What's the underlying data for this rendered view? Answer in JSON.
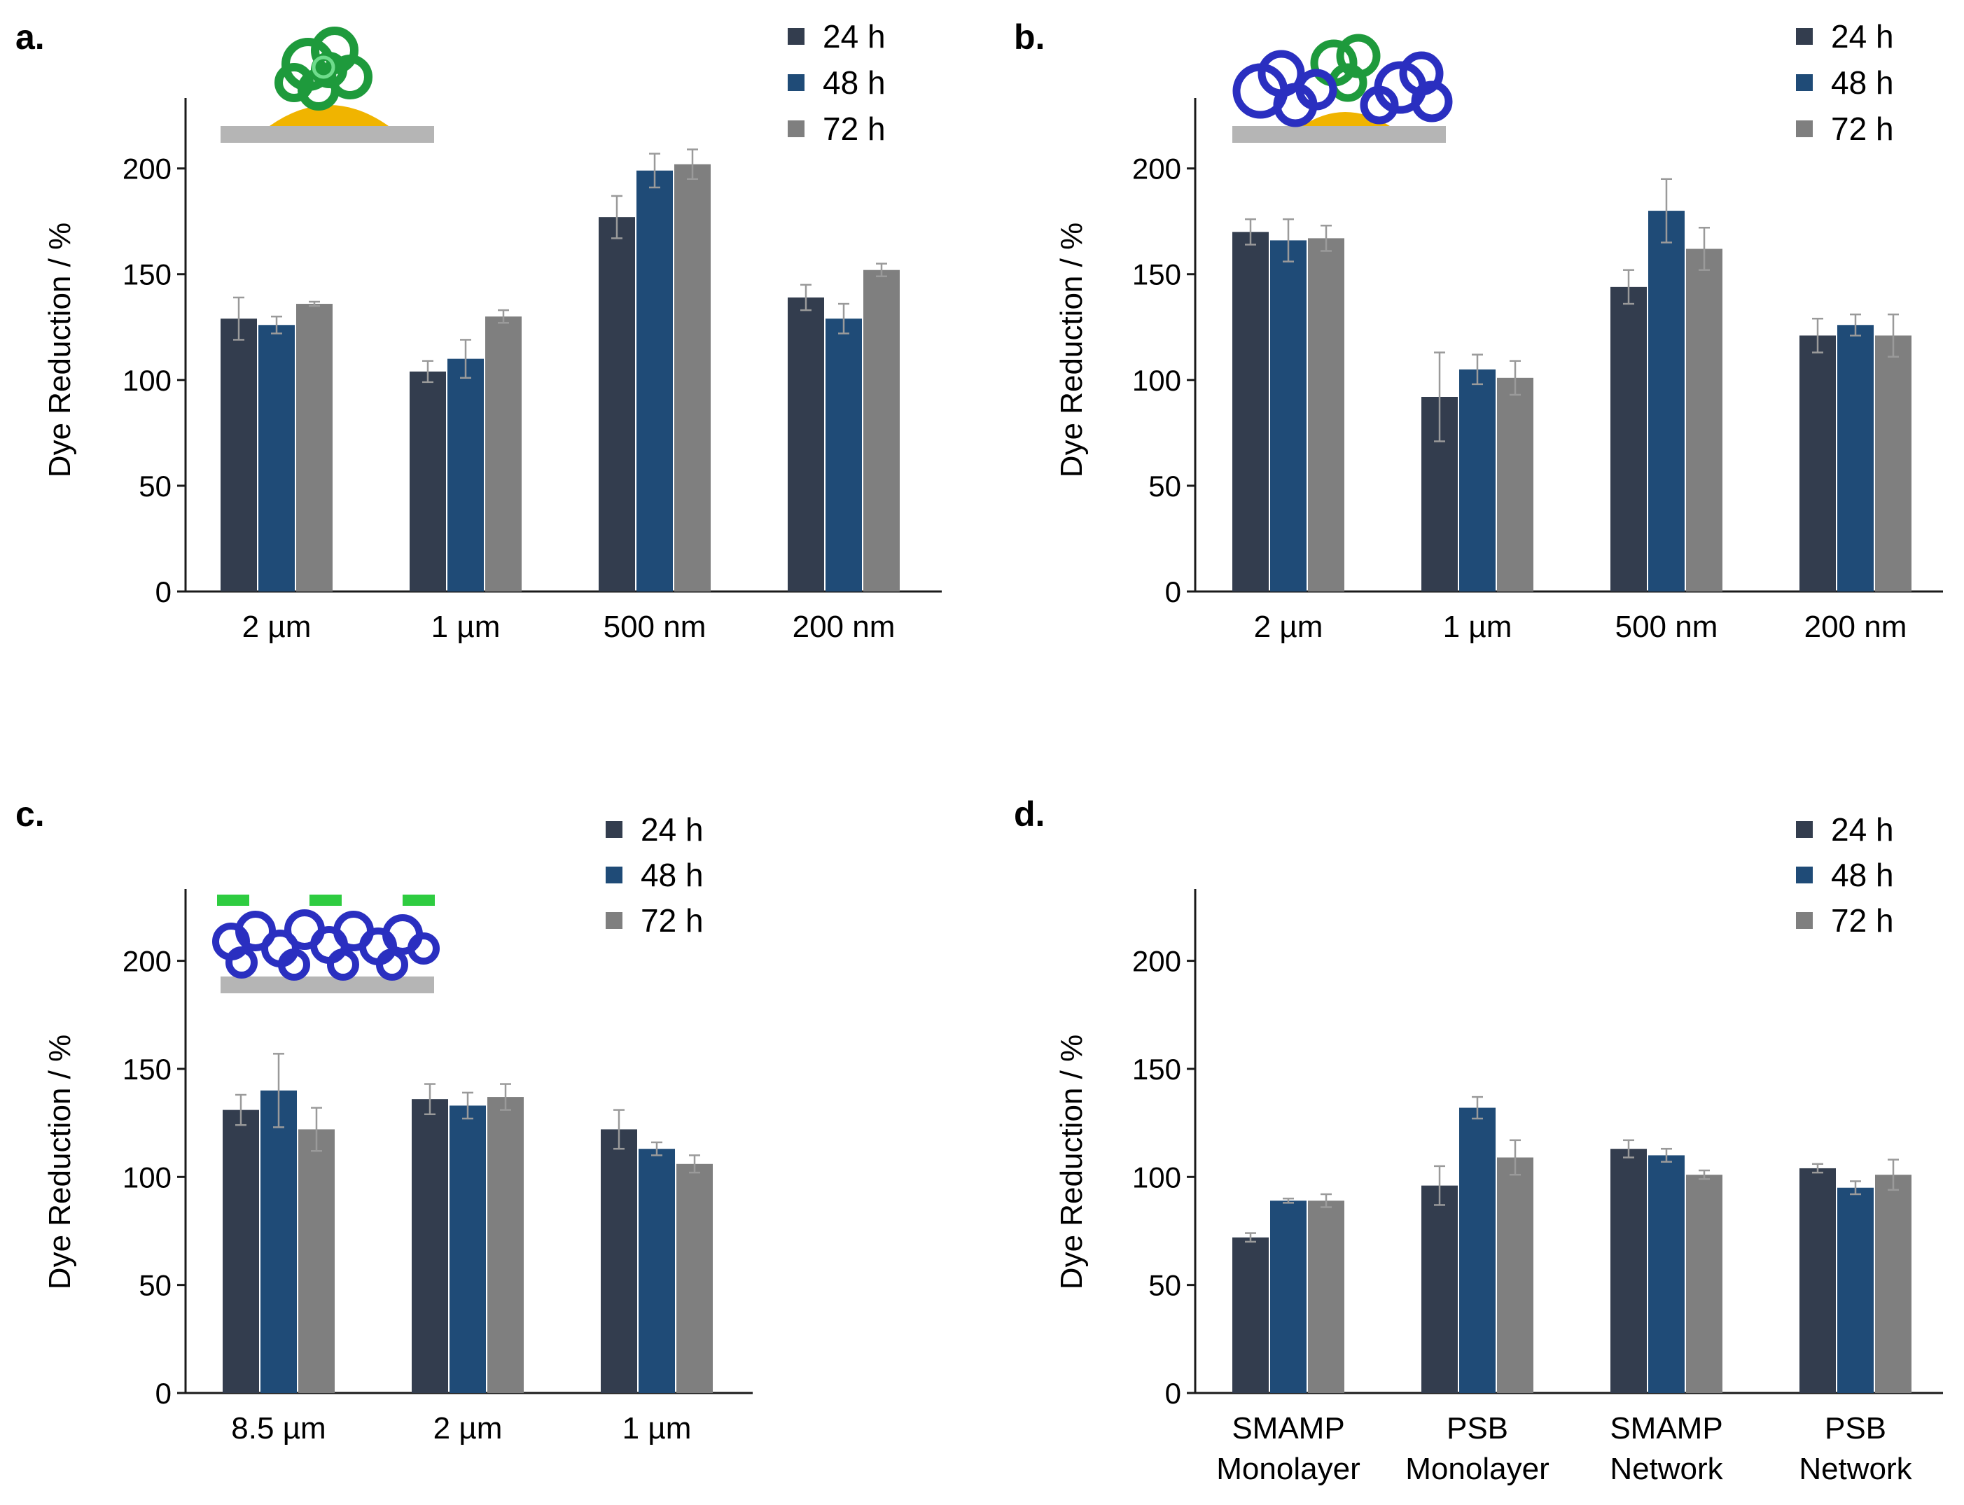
{
  "colors": {
    "24h": "#333d4e",
    "48h": "#1f4b77",
    "72h": "#7f7f7f"
  },
  "chart_data": [
    {
      "panel": "a.",
      "type": "bar",
      "ylabel": "Dye Reduction / %",
      "ylim": [
        0,
        230
      ],
      "yticks": [
        0,
        50,
        100,
        150,
        200
      ],
      "categories": [
        [
          "2 µm"
        ],
        [
          "1 µm"
        ],
        [
          "500 nm"
        ],
        [
          "200 nm"
        ]
      ],
      "series": [
        {
          "name": "24 h",
          "values": [
            129,
            104,
            177,
            139
          ],
          "errors": [
            10,
            5,
            10,
            6
          ]
        },
        {
          "name": "48 h",
          "values": [
            126,
            110,
            199,
            129
          ],
          "errors": [
            4,
            9,
            8,
            7
          ]
        },
        {
          "name": "72 h",
          "values": [
            136,
            130,
            202,
            152
          ],
          "errors": [
            1,
            3,
            7,
            3
          ]
        }
      ],
      "legend": "top-right"
    },
    {
      "panel": "b.",
      "type": "bar",
      "ylabel": "Dye Reduction / %",
      "ylim": [
        0,
        230
      ],
      "yticks": [
        0,
        50,
        100,
        150,
        200
      ],
      "categories": [
        [
          "2 µm"
        ],
        [
          "1 µm"
        ],
        [
          "500 nm"
        ],
        [
          "200 nm"
        ]
      ],
      "series": [
        {
          "name": "24 h",
          "values": [
            170,
            92,
            144,
            121
          ],
          "errors": [
            6,
            21,
            8,
            8
          ]
        },
        {
          "name": "48 h",
          "values": [
            166,
            105,
            180,
            126
          ],
          "errors": [
            10,
            7,
            15,
            5
          ]
        },
        {
          "name": "72 h",
          "values": [
            167,
            101,
            162,
            121
          ],
          "errors": [
            6,
            8,
            10,
            10
          ]
        }
      ],
      "legend": "top-right"
    },
    {
      "panel": "c.",
      "type": "bar",
      "ylabel": "Dye Reduction / %",
      "ylim": [
        0,
        230
      ],
      "yticks": [
        0,
        50,
        100,
        150,
        200
      ],
      "categories": [
        [
          "8.5 µm"
        ],
        [
          "2 µm"
        ],
        [
          "1 µm"
        ]
      ],
      "series": [
        {
          "name": "24 h",
          "values": [
            131,
            136,
            122
          ],
          "errors": [
            7,
            7,
            9
          ]
        },
        {
          "name": "48 h",
          "values": [
            140,
            133,
            113
          ],
          "errors": [
            17,
            6,
            3
          ]
        },
        {
          "name": "72 h",
          "values": [
            122,
            137,
            106
          ],
          "errors": [
            10,
            6,
            4
          ]
        }
      ],
      "legend": "top-right"
    },
    {
      "panel": "d.",
      "type": "bar",
      "ylabel": "Dye Reduction / %",
      "ylim": [
        0,
        230
      ],
      "yticks": [
        0,
        50,
        100,
        150,
        200
      ],
      "categories": [
        [
          "SMAMP",
          "Monolayer"
        ],
        [
          "PSB",
          "Monolayer"
        ],
        [
          "SMAMP",
          "Network"
        ],
        [
          "PSB",
          "Network"
        ]
      ],
      "series": [
        {
          "name": "24 h",
          "values": [
            72,
            96,
            113,
            104
          ],
          "errors": [
            2,
            9,
            4,
            2
          ]
        },
        {
          "name": "48 h",
          "values": [
            89,
            132,
            110,
            95
          ],
          "errors": [
            1,
            5,
            3,
            3
          ]
        },
        {
          "name": "72 h",
          "values": [
            89,
            109,
            101,
            101
          ],
          "errors": [
            3,
            8,
            2,
            7
          ]
        }
      ],
      "legend": "top-right"
    }
  ]
}
